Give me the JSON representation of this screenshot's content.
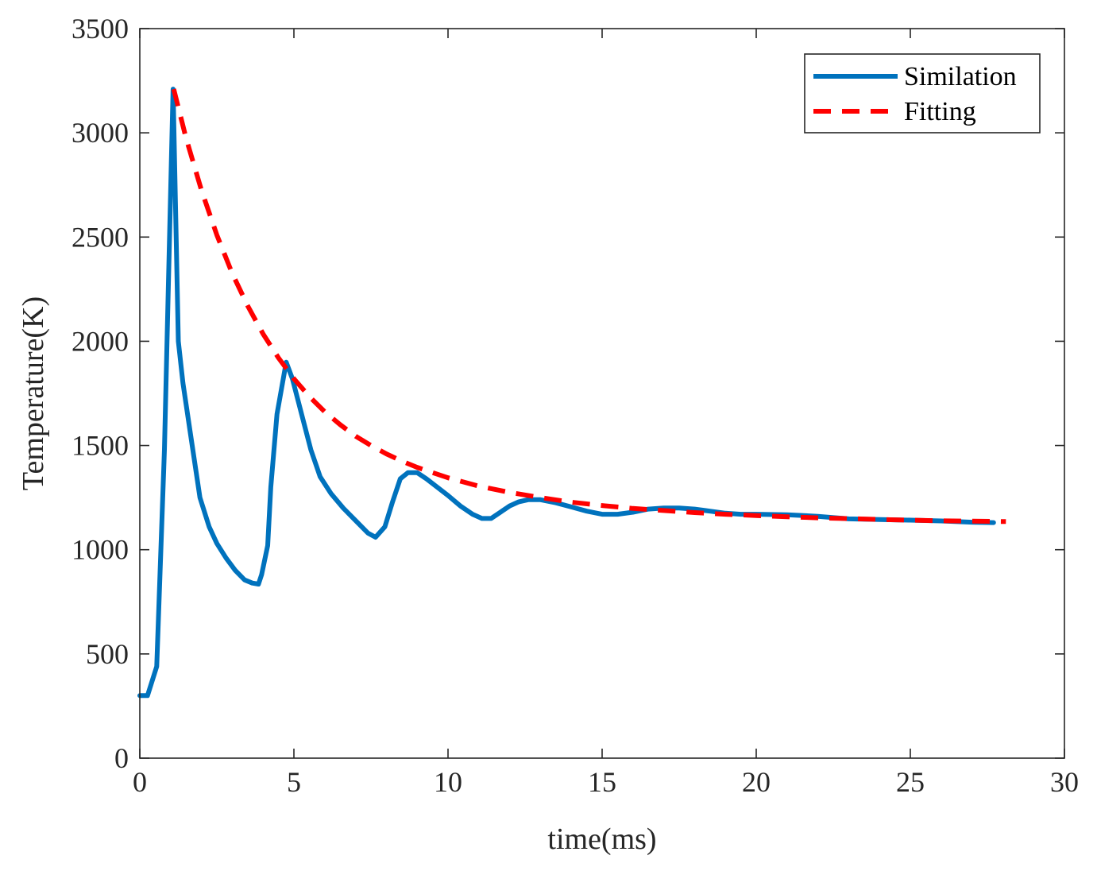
{
  "chart_data": {
    "type": "line",
    "title": "",
    "xlabel": "time(ms)",
    "ylabel": "Temperature(K)",
    "xlim": [
      0,
      30
    ],
    "ylim": [
      0,
      3500
    ],
    "xticks": [
      0,
      5,
      10,
      15,
      20,
      25,
      30
    ],
    "yticks": [
      0,
      500,
      1000,
      1500,
      2000,
      2500,
      3000,
      3500
    ],
    "xtick_labels": [
      "0",
      "5",
      "10",
      "15",
      "20",
      "25",
      "30"
    ],
    "ytick_labels": [
      "0",
      "500",
      "1000",
      "1500",
      "2000",
      "2500",
      "3000",
      "3500"
    ],
    "grid": false,
    "legend_position": "top-right",
    "series": [
      {
        "name": "Similation",
        "style": "solid",
        "color": "#0072BD",
        "x": [
          0,
          0.25,
          0.55,
          0.8,
          1.08,
          1.25,
          1.4,
          1.65,
          1.95,
          2.25,
          2.5,
          2.8,
          3.1,
          3.4,
          3.65,
          3.85,
          3.95,
          4.15,
          4.25,
          4.45,
          4.75,
          4.95,
          5.25,
          5.55,
          5.85,
          6.2,
          6.6,
          7.0,
          7.4,
          7.65,
          7.95,
          8.2,
          8.45,
          8.7,
          9.0,
          9.3,
          9.65,
          10.0,
          10.4,
          10.8,
          11.1,
          11.4,
          11.7,
          12.0,
          12.3,
          12.6,
          13.0,
          13.5,
          14.0,
          14.5,
          15.0,
          15.5,
          16.0,
          16.5,
          17.0,
          17.5,
          18.0,
          18.5,
          19.0,
          19.5,
          20.0,
          21.0,
          22.0,
          23.0,
          24.0,
          25.0,
          26.0,
          27.0,
          27.7
        ],
        "y": [
          300,
          300,
          440,
          1480,
          3210,
          2000,
          1800,
          1550,
          1250,
          1110,
          1030,
          960,
          900,
          855,
          840,
          835,
          880,
          1020,
          1300,
          1650,
          1900,
          1820,
          1650,
          1480,
          1350,
          1270,
          1200,
          1140,
          1080,
          1060,
          1110,
          1230,
          1340,
          1370,
          1370,
          1340,
          1300,
          1260,
          1210,
          1170,
          1150,
          1150,
          1180,
          1210,
          1230,
          1240,
          1240,
          1225,
          1205,
          1185,
          1170,
          1170,
          1180,
          1195,
          1200,
          1200,
          1195,
          1185,
          1175,
          1170,
          1170,
          1168,
          1160,
          1148,
          1145,
          1142,
          1138,
          1132,
          1130
        ]
      },
      {
        "name": "Fitting",
        "style": "dashed",
        "color": "#FF0000",
        "x": [
          1.1,
          1.5,
          2.0,
          2.5,
          3.0,
          3.5,
          4.0,
          4.5,
          5.0,
          5.5,
          6.0,
          6.5,
          7.0,
          7.5,
          8.0,
          8.5,
          9.0,
          9.5,
          10.0,
          11.0,
          12.0,
          13.0,
          14.0,
          15.0,
          16.0,
          17.0,
          18.0,
          19.0,
          20.0,
          21.0,
          22.0,
          23.0,
          24.0,
          25.0,
          26.0,
          27.0,
          28.1
        ],
        "y": [
          3210,
          2975,
          2725,
          2510,
          2325,
          2170,
          2035,
          1920,
          1820,
          1735,
          1662,
          1600,
          1545,
          1500,
          1460,
          1425,
          1395,
          1370,
          1345,
          1305,
          1275,
          1250,
          1228,
          1212,
          1198,
          1188,
          1178,
          1170,
          1164,
          1158,
          1153,
          1149,
          1145,
          1142,
          1139,
          1137,
          1135
        ]
      }
    ]
  }
}
